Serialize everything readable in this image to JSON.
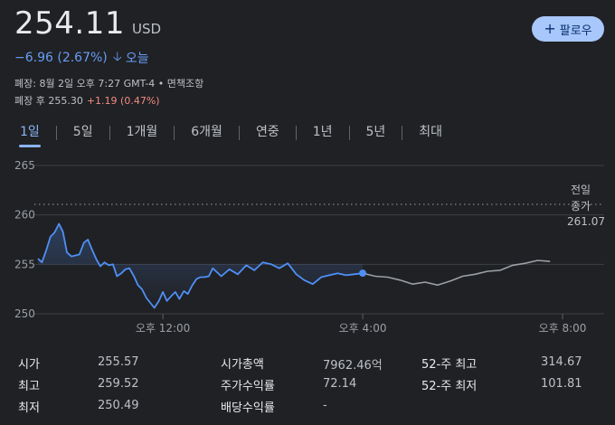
{
  "quote": {
    "price": "254.11",
    "currency": "USD",
    "change": "−6.96 (2.67%)",
    "today_label": "오늘",
    "closed_line": "폐장: 8월 2일 오후 7:27 GMT-4 • 면책조항",
    "afterhours_label": "폐장 후 255.30",
    "afterhours_change": "+1.19 (0.47%)"
  },
  "follow_button": {
    "icon": "plus-icon",
    "label": "팔로우"
  },
  "tabs": [
    "1일",
    "5일",
    "1개월",
    "6개월",
    "연중",
    "1년",
    "5년",
    "최대"
  ],
  "active_tab": "1일",
  "colors": {
    "accent": "#8ab4f8",
    "line_trading": "#4f8ff7",
    "line_after": "#9aa0a6",
    "down": "#669df6",
    "up": "#f28b82"
  },
  "chart_data": {
    "type": "line",
    "y_ticks": [
      "265",
      "260",
      "255",
      "250"
    ],
    "ylim": [
      250,
      265
    ],
    "x_ticks": [
      "오후 12:00",
      "오후 4:00",
      "오후 8:00"
    ],
    "prev_close_label_line1": "전일",
    "prev_close_label_line2": "종가",
    "prev_close_value": "261.07",
    "prev_close": 261.07,
    "grid": true,
    "series": [
      {
        "segment": "trading",
        "x": [
          9.5,
          9.58,
          9.67,
          9.75,
          9.83,
          9.92,
          10.0,
          10.08,
          10.17,
          10.25,
          10.33,
          10.42,
          10.5,
          10.58,
          10.67,
          10.75,
          10.83,
          10.92,
          11.0,
          11.08,
          11.17,
          11.25,
          11.33,
          11.42,
          11.5,
          11.58,
          11.67,
          11.75,
          11.83,
          11.92,
          12.0,
          12.08,
          12.17,
          12.25,
          12.33,
          12.42,
          12.5,
          12.58,
          12.67,
          12.75,
          12.83,
          12.92,
          13.0,
          13.17,
          13.33,
          13.5,
          13.67,
          13.83,
          14.0,
          14.17,
          14.33,
          14.5,
          14.67,
          14.83,
          15.0,
          15.17,
          15.33,
          15.5,
          15.67,
          15.83,
          16.0
        ],
        "values": [
          255.57,
          255.2,
          256.5,
          257.8,
          258.2,
          259.1,
          258.3,
          256.2,
          255.8,
          255.9,
          256.0,
          257.2,
          257.5,
          256.5,
          255.5,
          254.8,
          255.2,
          254.9,
          255.0,
          253.8,
          254.1,
          254.5,
          254.6,
          253.8,
          252.9,
          252.5,
          251.6,
          251.1,
          250.6,
          251.3,
          252.2,
          251.3,
          251.8,
          252.2,
          251.5,
          252.3,
          252.0,
          252.8,
          253.5,
          253.7,
          253.7,
          253.8,
          254.6,
          253.8,
          254.5,
          254.0,
          254.9,
          254.4,
          255.2,
          255.0,
          254.6,
          255.1,
          254.0,
          253.4,
          253.0,
          253.7,
          253.9,
          254.1,
          253.9,
          254.0,
          254.11
        ]
      },
      {
        "segment": "after-hours",
        "x": [
          16.0,
          16.25,
          16.5,
          16.75,
          17.0,
          17.25,
          17.5,
          17.75,
          18.0,
          18.25,
          18.5,
          18.75,
          19.0,
          19.25,
          19.5,
          19.75
        ],
        "values": [
          254.11,
          253.8,
          253.7,
          253.4,
          253.0,
          253.2,
          252.9,
          253.3,
          253.8,
          254.0,
          254.3,
          254.4,
          254.9,
          255.1,
          255.4,
          255.3
        ]
      }
    ]
  },
  "stats": {
    "col1": [
      {
        "label": "시가",
        "value": "255.57"
      },
      {
        "label": "최고",
        "value": "259.52"
      },
      {
        "label": "최저",
        "value": "250.49"
      }
    ],
    "col2": [
      {
        "label": "시가총액",
        "value": "7962.46억"
      },
      {
        "label": "주가수익률",
        "value": "72.14"
      },
      {
        "label": "배당수익률",
        "value": "-"
      }
    ],
    "col3": [
      {
        "label": "52-주 최고",
        "value": "314.67"
      },
      {
        "label": "52-주 최저",
        "value": "101.81"
      }
    ]
  }
}
